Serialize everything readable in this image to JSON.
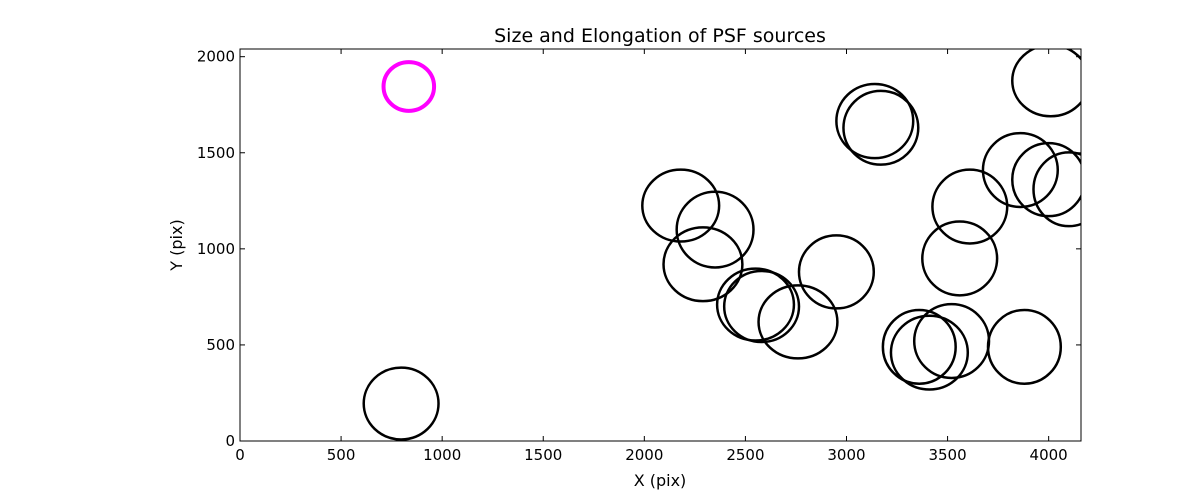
{
  "chart_data": {
    "type": "scatter",
    "title": "Size and Elongation of PSF sources",
    "xlabel": "X (pix)",
    "ylabel": "Y (pix)",
    "xlim": [
      0,
      4160
    ],
    "ylim": [
      0,
      2040
    ],
    "xticks": [
      0,
      500,
      1000,
      1500,
      2000,
      2500,
      3000,
      3500,
      4000
    ],
    "yticks": [
      0,
      500,
      1000,
      1500,
      2000
    ],
    "grid": false,
    "marker": "ellipse outline",
    "highlight_color": "#ff00ff",
    "default_color": "#000000",
    "sources": [
      {
        "x": 835,
        "y": 1845,
        "rx": 125,
        "ry": 127,
        "color": "#ff00ff"
      },
      {
        "x": 797,
        "y": 195,
        "rx": 185,
        "ry": 187,
        "color": "#000000"
      },
      {
        "x": 3140,
        "y": 1665,
        "rx": 190,
        "ry": 193,
        "color": "#000000"
      },
      {
        "x": 3170,
        "y": 1630,
        "rx": 185,
        "ry": 192,
        "color": "#000000"
      },
      {
        "x": 4010,
        "y": 1875,
        "rx": 190,
        "ry": 185,
        "color": "#000000"
      },
      {
        "x": 2180,
        "y": 1225,
        "rx": 190,
        "ry": 187,
        "color": "#000000"
      },
      {
        "x": 2350,
        "y": 1100,
        "rx": 190,
        "ry": 197,
        "color": "#000000"
      },
      {
        "x": 2290,
        "y": 920,
        "rx": 195,
        "ry": 192,
        "color": "#000000"
      },
      {
        "x": 2550,
        "y": 710,
        "rx": 190,
        "ry": 187,
        "color": "#000000"
      },
      {
        "x": 2580,
        "y": 700,
        "rx": 185,
        "ry": 185,
        "color": "#000000"
      },
      {
        "x": 2760,
        "y": 620,
        "rx": 195,
        "ry": 190,
        "color": "#000000"
      },
      {
        "x": 2950,
        "y": 880,
        "rx": 185,
        "ry": 190,
        "color": "#000000"
      },
      {
        "x": 3610,
        "y": 1220,
        "rx": 185,
        "ry": 192,
        "color": "#000000"
      },
      {
        "x": 3560,
        "y": 950,
        "rx": 185,
        "ry": 192,
        "color": "#000000"
      },
      {
        "x": 3860,
        "y": 1410,
        "rx": 185,
        "ry": 192,
        "color": "#000000"
      },
      {
        "x": 4000,
        "y": 1360,
        "rx": 180,
        "ry": 190,
        "color": "#000000"
      },
      {
        "x": 4100,
        "y": 1310,
        "rx": 175,
        "ry": 192,
        "color": "#000000"
      },
      {
        "x": 3360,
        "y": 490,
        "rx": 180,
        "ry": 192,
        "color": "#000000"
      },
      {
        "x": 3410,
        "y": 460,
        "rx": 190,
        "ry": 192,
        "color": "#000000"
      },
      {
        "x": 3520,
        "y": 520,
        "rx": 185,
        "ry": 192,
        "color": "#000000"
      },
      {
        "x": 3880,
        "y": 490,
        "rx": 180,
        "ry": 192,
        "color": "#000000"
      }
    ]
  }
}
